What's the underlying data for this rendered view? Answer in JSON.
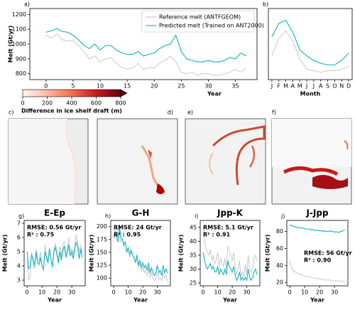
{
  "chart_data": [
    {
      "type": "line",
      "panel_label": "a)",
      "xlabel": "Year",
      "ylabel": "Melt (Gt/yr)",
      "x": [
        0,
        1,
        2,
        3,
        4,
        5,
        6,
        7,
        8,
        9,
        10,
        11,
        12,
        13,
        14,
        15,
        16,
        17,
        18,
        19,
        20,
        21,
        22,
        23,
        24,
        25,
        26,
        27,
        28,
        29,
        30,
        31,
        32,
        33,
        34,
        35,
        36,
        37
      ],
      "xlim": [
        -3,
        39
      ],
      "xticks": [
        0,
        5,
        10,
        15,
        20,
        25,
        30,
        35
      ],
      "ylim": [
        760,
        1240
      ],
      "yticks": [
        800,
        900,
        1000,
        1100,
        1200
      ],
      "legend": "upper right",
      "series": [
        {
          "name": "Reference melt (ANTFGEOM)",
          "color": "#c8c8c8",
          "values": [
            1060,
            1040,
            1070,
            1030,
            1020,
            1025,
            990,
            950,
            900,
            920,
            880,
            900,
            910,
            870,
            840,
            830,
            840,
            870,
            830,
            840,
            840,
            870,
            890,
            920,
            880,
            810,
            800,
            810,
            790,
            800,
            800,
            790,
            790,
            800,
            810,
            830,
            810,
            840
          ]
        },
        {
          "name": "Predicted melt (Trained on ANT2000)",
          "color": "#1fb8c6",
          "values": [
            1080,
            1090,
            1105,
            1085,
            1080,
            1060,
            1030,
            990,
            970,
            1000,
            960,
            990,
            990,
            960,
            940,
            930,
            930,
            950,
            920,
            930,
            940,
            970,
            990,
            1000,
            1060,
            950,
            900,
            890,
            880,
            880,
            890,
            880,
            880,
            890,
            910,
            900,
            940,
            920
          ]
        }
      ]
    },
    {
      "type": "line",
      "panel_label": "b)",
      "xlabel": "Month",
      "categories": [
        "J",
        "F",
        "M",
        "A",
        "M",
        "J",
        "J",
        "A",
        "S",
        "O",
        "N",
        "D"
      ],
      "ylim": [
        760,
        1240
      ],
      "series": [
        {
          "color": "#c8c8c8",
          "values": [
            920,
            1040,
            1090,
            1020,
            900,
            830,
            820,
            810,
            820,
            820,
            830,
            850
          ]
        },
        {
          "color": "#1fb8c6",
          "values": [
            1050,
            1140,
            1160,
            1080,
            960,
            920,
            890,
            870,
            860,
            860,
            890,
            940
          ]
        }
      ]
    },
    {
      "type": "colorbar",
      "xlabel": "Difference in ice shelf draft (m)",
      "xlim": [
        0,
        800
      ],
      "xticks": [
        0,
        200,
        400,
        600,
        800
      ],
      "colors": [
        "#fff5f0",
        "#fcbba1",
        "#fb6a4a",
        "#cb181d",
        "#67000d"
      ],
      "extend": "max"
    },
    {
      "type": "line",
      "panel_label": "g)",
      "title": "E-Ep",
      "xlabel": "Year",
      "ylabel": "Melt (Gt/yr)",
      "annotations": [
        "RMSE: 0.56 Gt/yr",
        "R² : 0.75"
      ],
      "x": [
        0,
        1,
        2,
        3,
        4,
        5,
        6,
        7,
        8,
        9,
        10,
        11,
        12,
        13,
        14,
        15,
        16,
        17,
        18,
        19,
        20,
        21,
        22,
        23,
        24,
        25,
        26,
        27,
        28,
        29,
        30,
        31,
        32,
        33,
        34,
        35,
        36,
        37
      ],
      "xlim": [
        -2,
        39
      ],
      "xticks": [
        0,
        10,
        20,
        30
      ],
      "ylim": [
        2.6,
        7.2
      ],
      "yticks": [
        3,
        4,
        5,
        6,
        7
      ],
      "series": [
        {
          "color": "#c8c8c8",
          "values": [
            4.6,
            3.0,
            3.3,
            5.0,
            4.2,
            3.8,
            5.2,
            4.6,
            4.3,
            5.0,
            4.0,
            3.6,
            5.5,
            4.8,
            4.4,
            5.3,
            4.5,
            4.0,
            5.2,
            5.6,
            5.0,
            4.4,
            5.4,
            4.6,
            5.5,
            5.7,
            4.8,
            5.2,
            6.0,
            5.0,
            5.2,
            4.8,
            5.5,
            6.2,
            5.6,
            5.0,
            5.5,
            4.9
          ]
        },
        {
          "color": "#1fb8c6",
          "values": [
            5.0,
            3.8,
            3.9,
            4.8,
            4.5,
            4.0,
            5.0,
            4.2,
            4.1,
            4.6,
            4.0,
            3.8,
            5.0,
            4.6,
            4.2,
            5.2,
            4.5,
            3.9,
            5.0,
            5.3,
            4.8,
            4.2,
            5.0,
            4.4,
            5.1,
            5.4,
            4.6,
            4.9,
            5.5,
            4.7,
            5.0,
            4.5,
            5.2,
            5.7,
            5.3,
            4.5,
            5.2,
            4.6
          ]
        }
      ]
    },
    {
      "type": "line",
      "panel_label": "h)",
      "title": "G-H",
      "xlabel": "Year",
      "ylabel": "Melt (Gt/yr)",
      "annotations": [
        "RMSE: 24 Gt/yr",
        "R² : 0.95"
      ],
      "x": [
        0,
        1,
        2,
        3,
        4,
        5,
        6,
        7,
        8,
        9,
        10,
        11,
        12,
        13,
        14,
        15,
        16,
        17,
        18,
        19,
        20,
        21,
        22,
        23,
        24,
        25,
        26,
        27,
        28,
        29,
        30,
        31,
        32,
        33,
        34,
        35,
        36,
        37
      ],
      "xlim": [
        -2,
        39
      ],
      "xticks": [
        0,
        10,
        20,
        30
      ],
      "ylim": [
        85,
        212
      ],
      "yticks": [
        100,
        125,
        150,
        175,
        200
      ],
      "series": [
        {
          "color": "#c8c8c8",
          "values": [
            195,
            190,
            200,
            180,
            185,
            170,
            178,
            160,
            170,
            150,
            160,
            140,
            150,
            145,
            138,
            130,
            140,
            120,
            130,
            115,
            120,
            110,
            115,
            105,
            120,
            100,
            110,
            100,
            95,
            100,
            110,
            98,
            100,
            95,
            110,
            100,
            105,
            95
          ]
        },
        {
          "color": "#1fb8c6",
          "values": [
            178,
            185,
            180,
            170,
            200,
            180,
            175,
            165,
            170,
            150,
            160,
            145,
            155,
            145,
            140,
            130,
            145,
            125,
            135,
            120,
            130,
            120,
            125,
            115,
            130,
            110,
            120,
            110,
            105,
            110,
            125,
            110,
            115,
            105,
            125,
            110,
            118,
            110
          ]
        }
      ]
    },
    {
      "type": "line",
      "panel_label": "i)",
      "title": "Jpp-K",
      "xlabel": "Year",
      "ylabel": "Melt (Gt/yr)",
      "annotations": [
        "RMSE: 5.1 Gt/yr",
        "R² : 0.91"
      ],
      "x": [
        0,
        1,
        2,
        3,
        4,
        5,
        6,
        7,
        8,
        9,
        10,
        11,
        12,
        13,
        14,
        15,
        16,
        17,
        18,
        19,
        20,
        21,
        22,
        23,
        24,
        25,
        26,
        27,
        28,
        29,
        30,
        31,
        32,
        33,
        34,
        35,
        36,
        37
      ],
      "xlim": [
        -2,
        39
      ],
      "xticks": [
        0,
        10,
        20,
        30
      ],
      "ylim": [
        24,
        47.5
      ],
      "yticks": [
        25,
        30,
        35,
        40,
        45
      ],
      "series": [
        {
          "color": "#c8c8c8",
          "values": [
            45,
            40,
            37,
            36,
            35,
            37,
            33,
            35,
            32,
            33,
            36,
            31,
            34,
            32,
            31,
            34,
            30,
            38,
            37,
            35,
            33,
            36,
            31,
            28,
            30,
            33,
            27,
            29,
            27,
            32,
            28,
            35,
            30,
            29,
            30,
            34,
            35,
            33
          ]
        },
        {
          "color": "#1fb8c6",
          "values": [
            36,
            33,
            31,
            30,
            31,
            32,
            30,
            31,
            29,
            29,
            31,
            28,
            30,
            29,
            28,
            30,
            28,
            33,
            31,
            30,
            29,
            31,
            28,
            26,
            27,
            29,
            26,
            27,
            26,
            27,
            26,
            30,
            27,
            26,
            27,
            29,
            30,
            28
          ]
        }
      ]
    },
    {
      "type": "line",
      "panel_label": "j)",
      "title": "J-Jpp",
      "xlabel": "Year",
      "ylabel": "Melt (Gt/yr)",
      "annotations": [
        "RMSE: 56 Gt/yr",
        "R² : 0.90"
      ],
      "x": [
        0,
        1,
        2,
        3,
        4,
        5,
        6,
        7,
        8,
        9,
        10,
        11,
        12,
        13,
        14,
        15,
        16,
        17,
        18,
        19,
        20,
        21,
        22,
        23,
        24,
        25,
        26,
        27,
        28,
        29,
        30,
        31,
        32,
        33,
        34,
        35,
        36,
        37
      ],
      "xlim": [
        -2,
        39
      ],
      "xticks": [
        0,
        10,
        20,
        30
      ],
      "ylim": [
        16,
        93
      ],
      "yticks": [
        20,
        40,
        60,
        80
      ],
      "series": [
        {
          "color": "#c8c8c8",
          "values": [
            46,
            38,
            35,
            33,
            32,
            31,
            30,
            29,
            29,
            28,
            28,
            27,
            27,
            26,
            26,
            26,
            25,
            25,
            25,
            24,
            24,
            24,
            24,
            23,
            23,
            23,
            23,
            23,
            22,
            22,
            22,
            22,
            22,
            22,
            21,
            21,
            22,
            21
          ]
        },
        {
          "color": "#1fb8c6",
          "values": [
            88,
            87,
            86,
            86,
            85,
            85,
            85,
            84,
            84,
            84,
            83,
            83,
            83,
            83,
            82,
            82,
            82,
            81,
            82,
            81,
            81,
            81,
            80,
            81,
            80,
            80,
            80,
            81,
            80,
            80,
            79,
            80,
            79,
            79,
            80,
            80,
            81,
            82
          ]
        }
      ]
    }
  ],
  "maps": [
    {
      "label": "c)"
    },
    {
      "label": "d)"
    },
    {
      "label": "e)"
    },
    {
      "label": "f)"
    }
  ]
}
